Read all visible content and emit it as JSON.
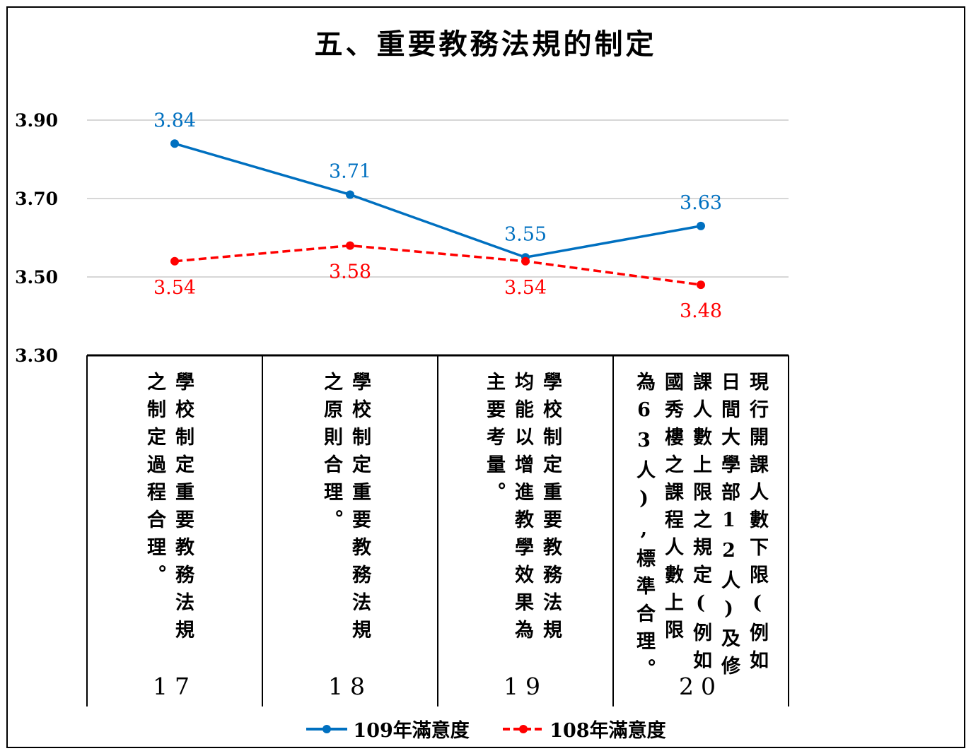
{
  "chart_data": {
    "type": "line",
    "title": "五、重要教務法規的制定",
    "categories": [
      "17",
      "18",
      "19",
      "20"
    ],
    "category_descriptions": [
      "學校制定重要教務法規\n之制定過程合理。",
      "學校制定重要教務法規\n之原則合理。",
      "學校制定重要教務法規\n均能以增進教學效果為\n主要考量。",
      "現行開課人數下限(例如\n日間大學部12人)及修\n課人數上限之規定(例如\n國秀樓之課程人數上限\n為63人),標準合理。"
    ],
    "series": [
      {
        "name": "109年滿意度",
        "values": [
          3.84,
          3.71,
          3.55,
          3.63
        ],
        "color": "#0070C0",
        "dashed": false
      },
      {
        "name": "108年滿意度",
        "values": [
          3.54,
          3.58,
          3.54,
          3.48
        ],
        "color": "#FF0000",
        "dashed": true
      }
    ],
    "value_labels": {
      "s0": [
        "3.84",
        "3.71",
        "3.55",
        "3.63"
      ],
      "s1": [
        "3.54",
        "3.58",
        "3.54",
        "3.48"
      ]
    },
    "yticks": [
      "3.90",
      "3.70",
      "3.50",
      "3.30"
    ],
    "ylim": [
      3.3,
      3.9
    ],
    "grid": true,
    "legend_position": "bottom"
  }
}
